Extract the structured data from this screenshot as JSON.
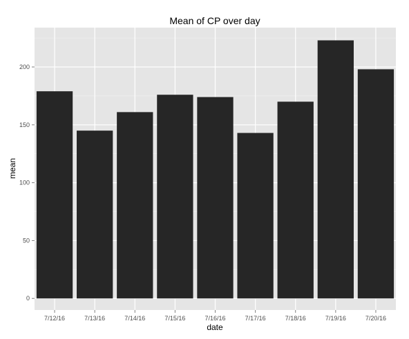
{
  "chart_data": {
    "type": "bar",
    "title": "Mean of CP over day",
    "xlabel": "date",
    "ylabel": "mean",
    "categories": [
      "7/12/16",
      "7/13/16",
      "7/14/16",
      "7/15/16",
      "7/16/16",
      "7/17/16",
      "7/18/16",
      "7/19/16",
      "7/20/16"
    ],
    "values": [
      179,
      145,
      161,
      176,
      174,
      143,
      170,
      223,
      198
    ],
    "yticks": [
      0,
      50,
      100,
      150,
      200
    ],
    "ylim": [
      -10,
      234
    ],
    "grid": true,
    "legend": "none",
    "colors": {
      "panel": "#e5e5e5",
      "grid_major": "#ffffff",
      "grid_minor": "#f2f2f2",
      "bar": "#262626",
      "tick": "#7f7f7f"
    }
  }
}
